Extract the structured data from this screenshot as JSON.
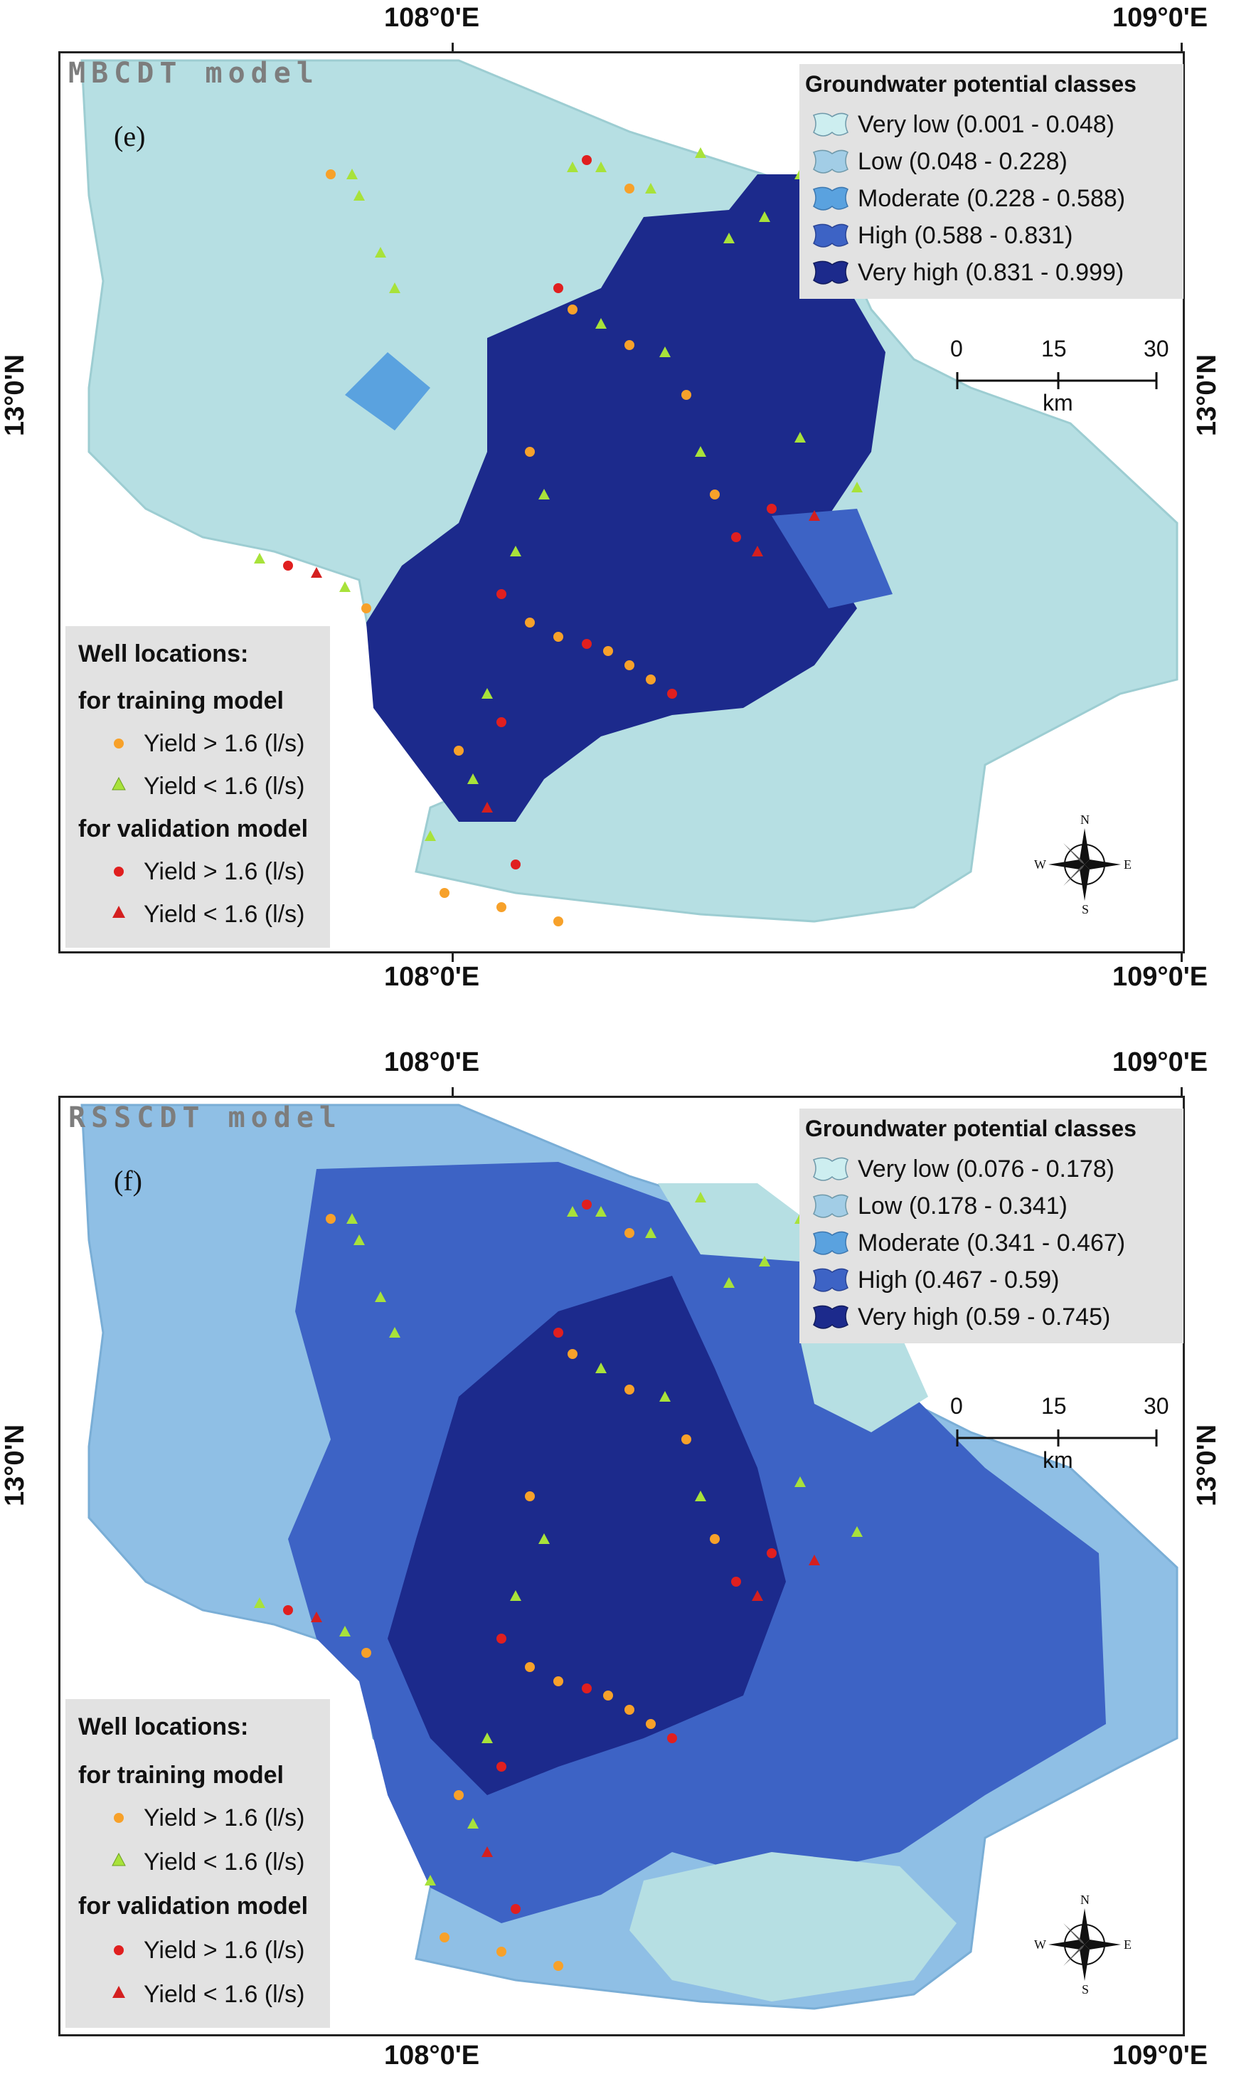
{
  "panels": [
    {
      "model_title": "MBCDT model",
      "label": "(e)",
      "legend_title": "Groundwater potential classes",
      "classes": [
        {
          "label": "Very low (0.001 - 0.048)",
          "color": "#cdeef0"
        },
        {
          "label": "Low (0.048 - 0.228)",
          "color": "#a2cde6"
        },
        {
          "label": "Moderate (0.228 - 0.588)",
          "color": "#5aa2df"
        },
        {
          "label": "High (0.588 - 0.831)",
          "color": "#3d63c5"
        },
        {
          "label": "Very high (0.831 - 0.999)",
          "color": "#1c2a8c"
        }
      ]
    },
    {
      "model_title": "RSSCDT model",
      "label": "(f)",
      "legend_title": "Groundwater potential classes",
      "classes": [
        {
          "label": "Very low (0.076 - 0.178)",
          "color": "#cdeef0"
        },
        {
          "label": "Low (0.178 - 0.341)",
          "color": "#a2cde6"
        },
        {
          "label": "Moderate (0.341 - 0.467)",
          "color": "#5aa2df"
        },
        {
          "label": "High (0.467 - 0.59)",
          "color": "#3d63c5"
        },
        {
          "label": "Very high (0.59 - 0.745)",
          "color": "#1c2a8c"
        }
      ]
    }
  ],
  "coords": {
    "lon_left": "108°0'E",
    "lon_right": "109°0'E",
    "lat": "13°0'N"
  },
  "scale_bar": {
    "ticks": [
      "0",
      "15",
      "30"
    ],
    "unit": "km"
  },
  "compass": {
    "n": "N",
    "s": "S",
    "e": "E",
    "w": "W"
  },
  "wells": {
    "title": "Well locations:",
    "training_heading": "for training model",
    "validation_heading": "for validation model",
    "yield_high": "Yield > 1.6 (l/s)",
    "yield_low": "Yield < 1.6 (l/s)",
    "colors": {
      "training_high": "#f7a12a",
      "training_low": "#a8e23a",
      "validation_high": "#e01f1f",
      "validation_low": "#d41f1f"
    }
  }
}
